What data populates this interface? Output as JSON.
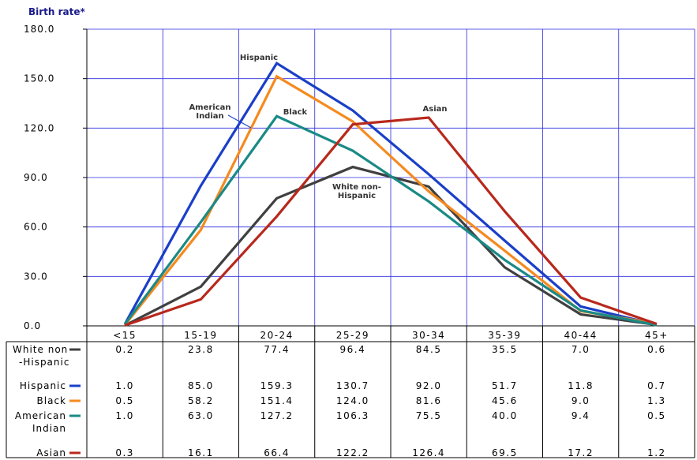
{
  "chart_data": {
    "type": "line",
    "ylabel": "Birth rate*",
    "ylim": [
      0,
      180
    ],
    "yticks": [
      "0.0",
      "30.0",
      "60.0",
      "90.0",
      "120.0",
      "150.0",
      "180.0"
    ],
    "categories": [
      "<15",
      "15-19",
      "20-24",
      "25-29",
      "30-34",
      "35-39",
      "40-44",
      "45+"
    ],
    "grid": true,
    "series": [
      {
        "name": "White non-Hispanic",
        "row_label": [
          "White non",
          "-Hispanic"
        ],
        "color": "#404040",
        "values": [
          0.2,
          23.8,
          77.4,
          96.4,
          84.5,
          35.5,
          7.0,
          0.6
        ],
        "display": [
          "0.2",
          "23.8",
          "77.4",
          "96.4",
          "84.5",
          "35.5",
          "7.0",
          "0.6"
        ]
      },
      {
        "name": "Hispanic",
        "row_label": [
          "Hispanic"
        ],
        "color": "#1a3fc8",
        "values": [
          1.0,
          85.0,
          159.3,
          130.7,
          92.0,
          51.7,
          11.8,
          0.7
        ],
        "display": [
          "1.0",
          "85.0",
          "159.3",
          "130.7",
          "92.0",
          "51.7",
          "11.8",
          "0.7"
        ]
      },
      {
        "name": "Black",
        "row_label": [
          "Black"
        ],
        "color": "#f58a1f",
        "values": [
          0.5,
          58.2,
          151.4,
          124.0,
          81.6,
          45.6,
          9.0,
          1.3
        ],
        "display": [
          "0.5",
          "58.2",
          "151.4",
          "124.0",
          "81.6",
          "45.6",
          "9.0",
          "1.3"
        ]
      },
      {
        "name": "American Indian",
        "row_label": [
          "American",
          "Indian"
        ],
        "color": "#1a8a86",
        "values": [
          1.0,
          63.0,
          127.2,
          106.3,
          75.5,
          40.0,
          9.4,
          0.5
        ],
        "display": [
          "1.0",
          "63.0",
          "127.2",
          "106.3",
          "75.5",
          "40.0",
          "9.4",
          "0.5"
        ]
      },
      {
        "name": "Asian",
        "row_label": [
          "Asian"
        ],
        "color": "#b8281c",
        "values": [
          0.3,
          16.1,
          66.4,
          122.2,
          126.4,
          69.5,
          17.2,
          1.2
        ],
        "display": [
          "0.3",
          "16.1",
          "66.4",
          "122.2",
          "126.4",
          "69.5",
          "17.2",
          "1.2"
        ]
      }
    ],
    "annotations": [
      {
        "lines": [
          "Hispanic"
        ]
      },
      {
        "lines": [
          "American",
          "Indian"
        ]
      },
      {
        "lines": [
          "Black"
        ]
      },
      {
        "lines": [
          "Asian"
        ]
      },
      {
        "lines": [
          "White non-",
          "Hispanic"
        ]
      }
    ]
  }
}
